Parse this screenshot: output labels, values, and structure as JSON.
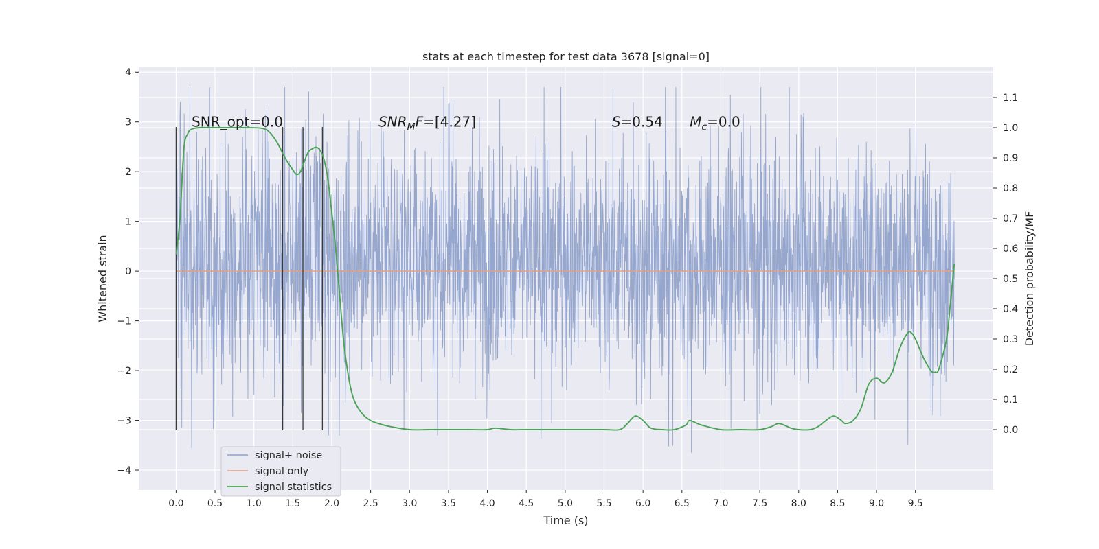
{
  "chart_data": {
    "type": "line",
    "title": "stats at each timestep for test data 3678 [signal=0]",
    "xlabel": "Time (s)",
    "ylabel": "Whitened strain",
    "y2label": "Detection probability/MF",
    "xlim": [
      -0.48,
      10.5
    ],
    "ylim": [
      -4.4,
      4.1
    ],
    "y2lim": [
      -0.2,
      1.2
    ],
    "x_ticks": [
      0.0,
      0.5,
      1.0,
      1.5,
      2.0,
      2.5,
      3.0,
      3.5,
      4.0,
      4.5,
      5.0,
      5.5,
      6.0,
      6.5,
      7.0,
      7.5,
      8.0,
      8.5,
      9.0,
      9.5
    ],
    "x_tick_labels": [
      "0.0",
      "0.5",
      "1.0",
      "1.5",
      "2.0",
      "2.5",
      "3.0",
      "3.5",
      "4.0",
      "4.5",
      "5.0",
      "5.5",
      "6.0",
      "6.5",
      "7.0",
      "7.5",
      "8.0",
      "8.5",
      "9.0",
      "9.5"
    ],
    "y_ticks": [
      4,
      3,
      2,
      1,
      0,
      -1,
      -2,
      -3,
      -4
    ],
    "y_tick_labels": [
      "4",
      "3",
      "2",
      "1",
      "0",
      "−1",
      "−2",
      "−3",
      "−4"
    ],
    "y2_ticks": [
      1.1,
      1.0,
      0.9,
      0.8,
      0.7,
      0.6,
      0.5,
      0.4,
      0.3,
      0.2,
      0.1,
      0.0
    ],
    "y2_tick_labels": [
      "1.1",
      "1.0",
      "0.9",
      "0.8",
      "0.7",
      "0.6",
      "0.5",
      "0.4",
      "0.3",
      "0.2",
      "0.1",
      "0.0"
    ],
    "grid": true,
    "legend_position": "lower-left",
    "legend": [
      "signal+ noise",
      "signal only",
      "signal statistics"
    ],
    "annotations": [
      {
        "text": "SNR_opt=0.0",
        "x": 0.2,
        "y": 3.0
      },
      {
        "text": "SNR_M F=[4.27]",
        "x": 2.6,
        "y": 3.0
      },
      {
        "text": "S=0.54",
        "x": 5.6,
        "y": 3.0
      },
      {
        "text": "M_c=0.0",
        "x": 6.6,
        "y": 3.0
      }
    ],
    "colors": {
      "noise": "#8da0cb",
      "signal": "#e5a07e",
      "stats": "#4aa256",
      "vlines": "#3a3a3a",
      "background": "#eaeaf2"
    },
    "series": [
      {
        "name": "signal+ noise",
        "x_range": [
          0.0,
          10.0
        ],
        "typical_band": [
          -1.9,
          2.4
        ],
        "peak_max": 3.7,
        "peak_min": -3.8
      },
      {
        "name": "signal only",
        "x": [
          0.0,
          10.0
        ],
        "values": [
          0.0,
          0.0
        ]
      },
      {
        "name": "signal statistics",
        "axis": "right",
        "x": [
          0.0,
          0.05,
          0.1,
          0.15,
          0.2,
          0.3,
          0.5,
          0.7,
          0.9,
          1.1,
          1.2,
          1.3,
          1.4,
          1.5,
          1.55,
          1.6,
          1.65,
          1.7,
          1.75,
          1.8,
          1.85,
          1.9,
          1.95,
          2.0,
          2.05,
          2.1,
          2.15,
          2.2,
          2.25,
          2.3,
          2.4,
          2.5,
          2.6,
          2.75,
          3.0,
          3.25,
          3.5,
          3.75,
          4.0,
          4.1,
          4.3,
          4.5,
          5.0,
          5.5,
          5.7,
          5.8,
          5.9,
          6.0,
          6.1,
          6.25,
          6.4,
          6.55,
          6.6,
          6.75,
          7.0,
          7.25,
          7.5,
          7.65,
          7.75,
          7.9,
          8.0,
          8.15,
          8.25,
          8.35,
          8.45,
          8.55,
          8.6,
          8.7,
          8.8,
          8.9,
          9.0,
          9.1,
          9.2,
          9.3,
          9.4,
          9.45,
          9.5,
          9.6,
          9.7,
          9.75,
          9.8,
          9.9,
          9.95,
          10.0
        ],
        "values": [
          0.58,
          0.7,
          0.93,
          0.98,
          0.995,
          1.0,
          1.0,
          1.0,
          1.0,
          0.998,
          0.985,
          0.95,
          0.9,
          0.86,
          0.845,
          0.855,
          0.89,
          0.92,
          0.93,
          0.935,
          0.925,
          0.895,
          0.83,
          0.72,
          0.6,
          0.45,
          0.3,
          0.2,
          0.13,
          0.09,
          0.05,
          0.03,
          0.02,
          0.01,
          0.0,
          0.0,
          0.0,
          0.0,
          0.0,
          0.005,
          0.0,
          0.0,
          0.0,
          0.0,
          0.0,
          0.02,
          0.045,
          0.03,
          0.005,
          0.0,
          0.0,
          0.015,
          0.03,
          0.015,
          0.0,
          0.0,
          0.0,
          0.01,
          0.02,
          0.005,
          0.0,
          0.0,
          0.01,
          0.03,
          0.045,
          0.03,
          0.02,
          0.03,
          0.07,
          0.15,
          0.17,
          0.155,
          0.19,
          0.27,
          0.32,
          0.32,
          0.3,
          0.24,
          0.195,
          0.19,
          0.2,
          0.3,
          0.42,
          0.55
        ]
      }
    ],
    "vertical_lines": [
      {
        "x": 0.0,
        "y_top": 2.9,
        "y_bottom": -3.2
      },
      {
        "x": 1.37,
        "y_top": 2.9,
        "y_bottom": -3.2
      },
      {
        "x": 1.63,
        "y_top": 2.9,
        "y_bottom": -3.2
      },
      {
        "x": 1.88,
        "y_top": 2.9,
        "y_bottom": -3.2
      }
    ]
  }
}
